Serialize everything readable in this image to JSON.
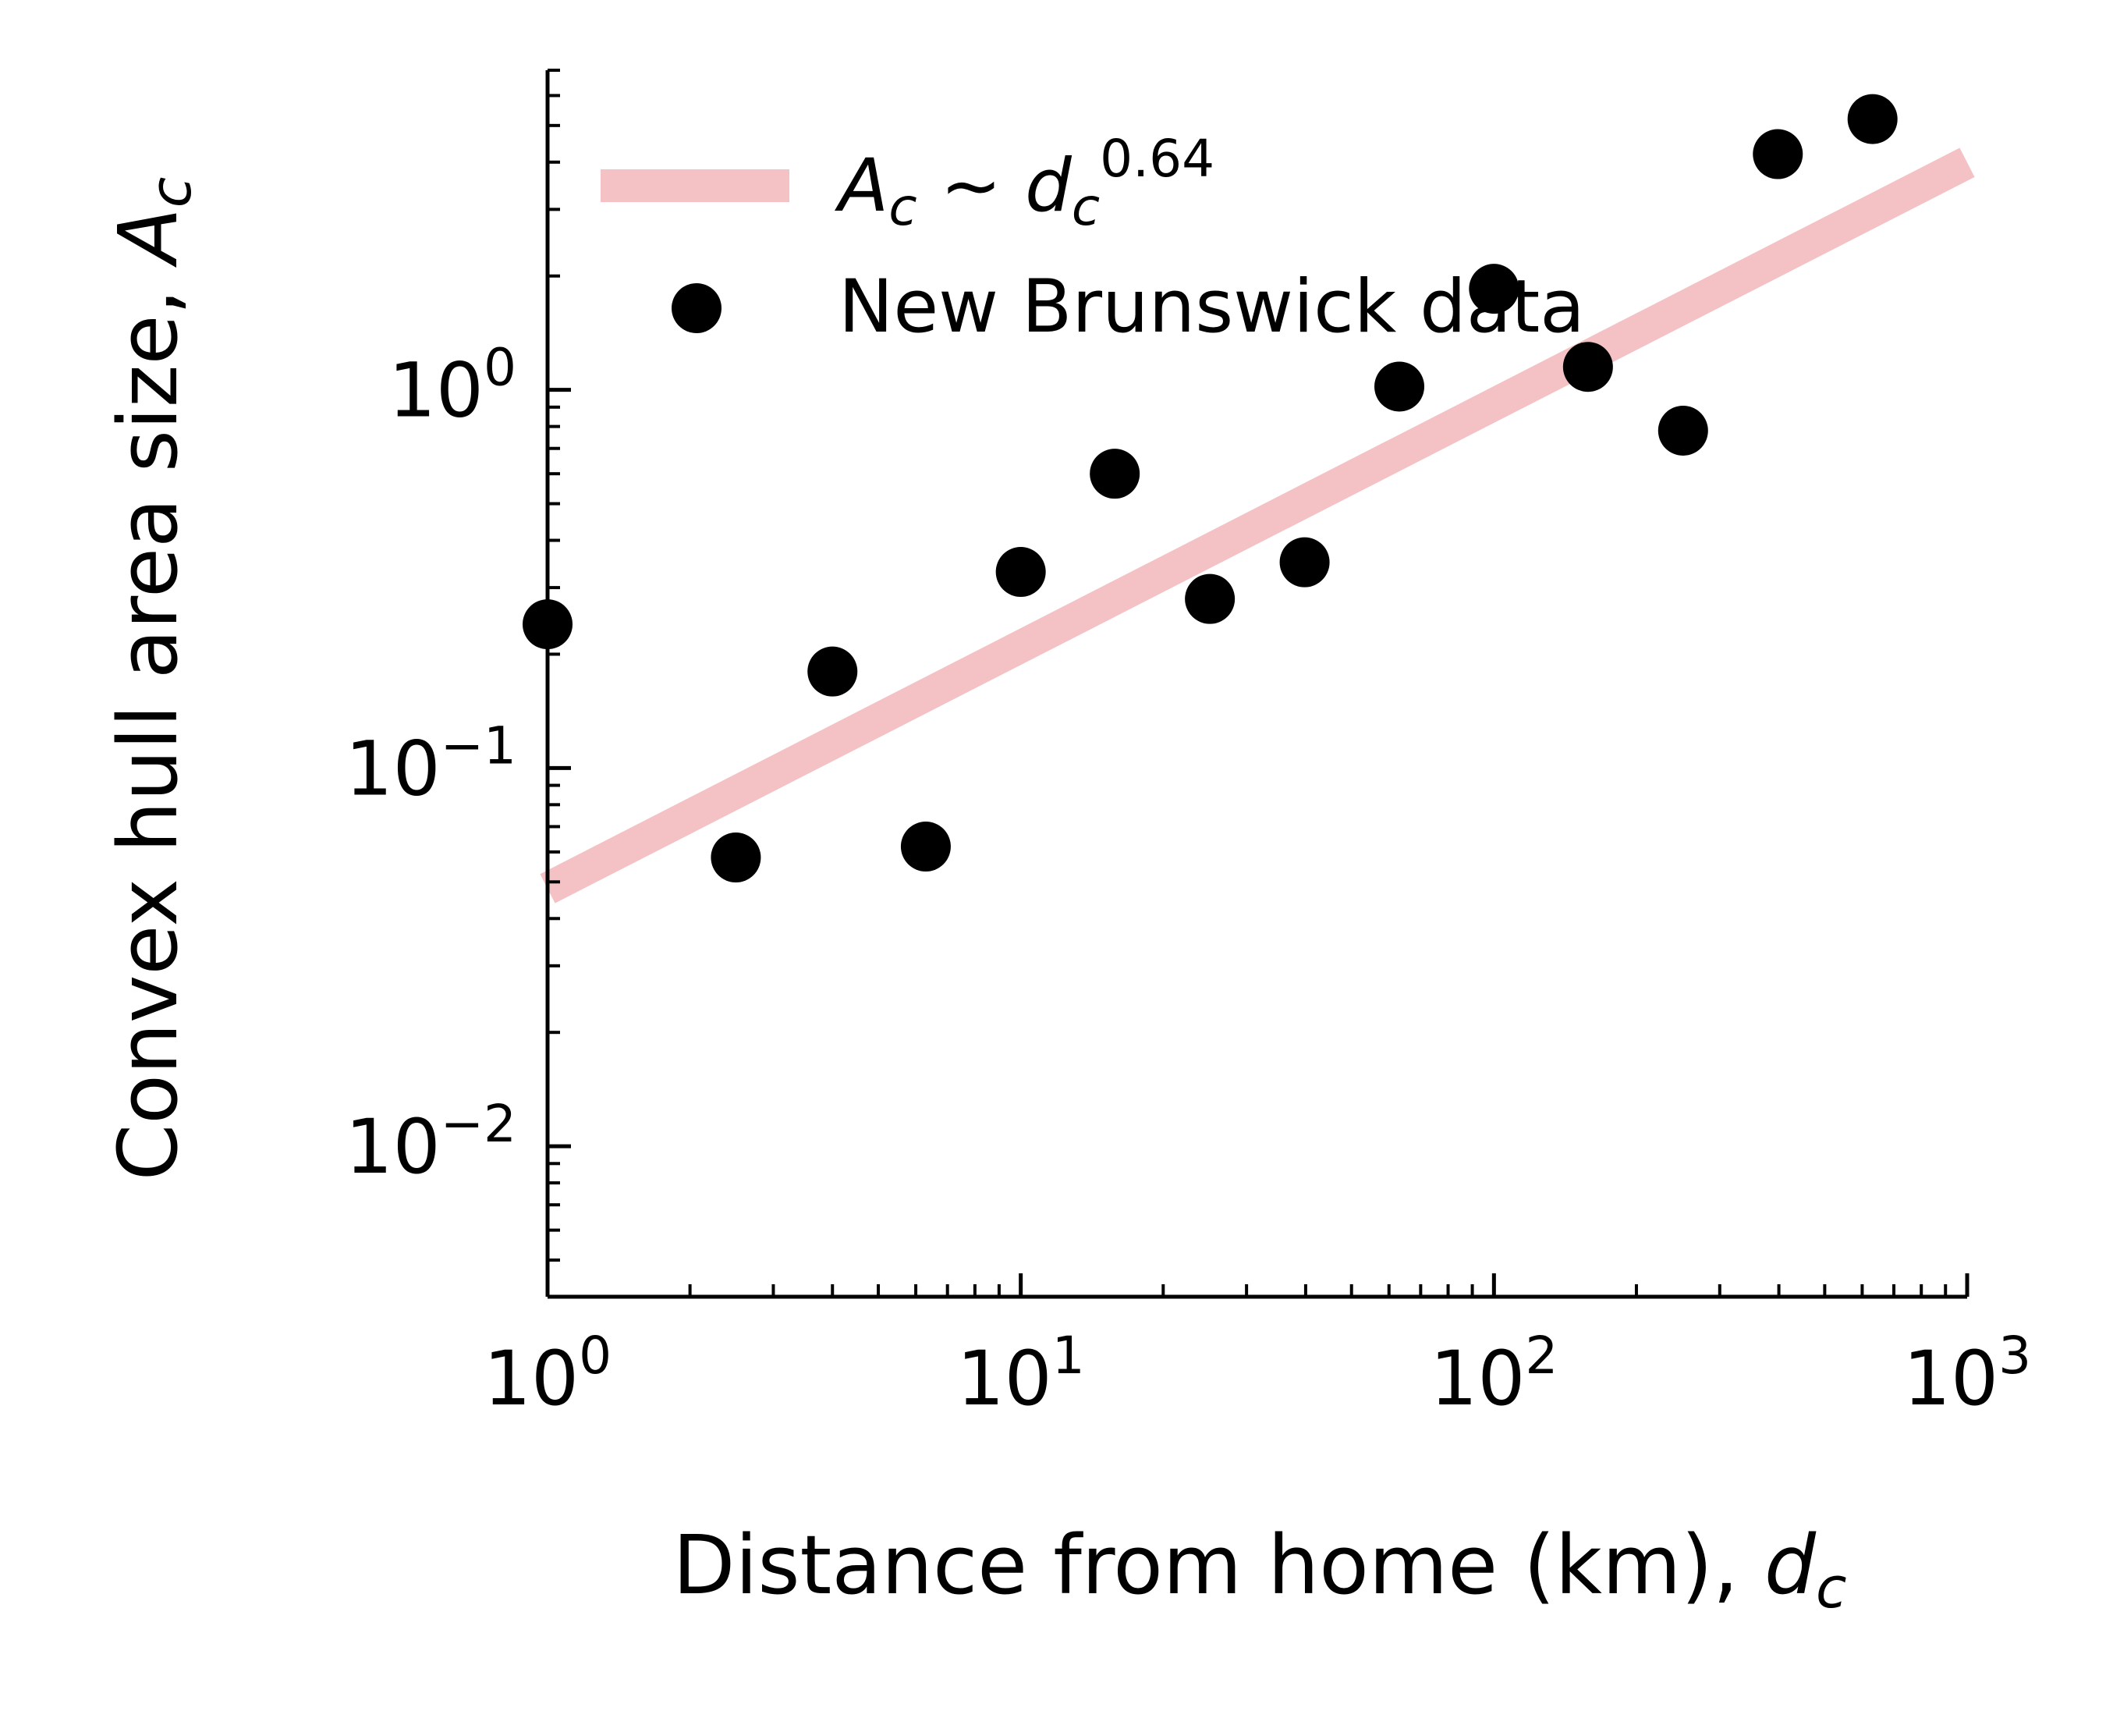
{
  "chart_data": {
    "type": "scatter",
    "xscale": "log",
    "yscale": "log",
    "xlim": [
      1,
      1000
    ],
    "ylim": [
      0.004,
      7
    ],
    "xlabel": {
      "text": "Distance from home (km), ",
      "symbol": "d",
      "sub": "c"
    },
    "ylabel": {
      "text": "Convex hull area size, ",
      "symbol": "A",
      "sub": "c"
    },
    "x_ticks": [
      {
        "value": 1,
        "base": "10",
        "exp": "0"
      },
      {
        "value": 10,
        "base": "10",
        "exp": "1"
      },
      {
        "value": 100,
        "base": "10",
        "exp": "2"
      },
      {
        "value": 1000,
        "base": "10",
        "exp": "3"
      }
    ],
    "y_ticks": [
      {
        "value": 0.01,
        "base": "10",
        "exp": "−2"
      },
      {
        "value": 0.1,
        "base": "10",
        "exp": "−1"
      },
      {
        "value": 1,
        "base": "10",
        "exp": "0"
      }
    ],
    "grid": false,
    "legend": {
      "placement": "upper-left",
      "fit_label": {
        "A": "A",
        "A_sub": "c",
        "tilde": " ~ ",
        "d": "d",
        "d_sub": "c",
        "exponent": "0.64"
      },
      "data_label": "New Brunswick data"
    },
    "fit": {
      "exponent": 0.64,
      "coef": 0.048,
      "color": "#f4c2c4"
    },
    "series": [
      {
        "name": "New Brunswick data",
        "color": "#000000",
        "points": [
          {
            "x": 1.0,
            "y": 0.24
          },
          {
            "x": 2.5,
            "y": 0.058
          },
          {
            "x": 4.0,
            "y": 0.18
          },
          {
            "x": 6.3,
            "y": 0.062
          },
          {
            "x": 10.0,
            "y": 0.33
          },
          {
            "x": 15.8,
            "y": 0.6
          },
          {
            "x": 25.1,
            "y": 0.28
          },
          {
            "x": 39.8,
            "y": 0.35
          },
          {
            "x": 63.1,
            "y": 1.02
          },
          {
            "x": 100,
            "y": 1.85
          },
          {
            "x": 158,
            "y": 1.15
          },
          {
            "x": 251,
            "y": 0.78
          },
          {
            "x": 398,
            "y": 4.2
          },
          {
            "x": 631,
            "y": 5.2
          }
        ]
      }
    ]
  }
}
